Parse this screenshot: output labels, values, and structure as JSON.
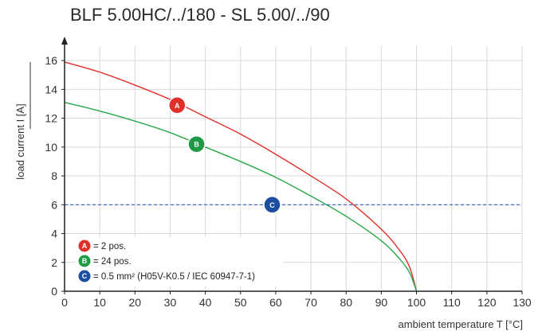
{
  "chart_data": {
    "type": "line",
    "title": "BLF 5.00HC/../180 - SL 5.00/../90",
    "xlabel": "ambient temperature T [°C]",
    "ylabel": "load current I [A]",
    "xlim": [
      0,
      130
    ],
    "ylim": [
      0,
      17
    ],
    "x_ticks": [
      0,
      10,
      20,
      30,
      40,
      50,
      60,
      70,
      80,
      90,
      100,
      110,
      120,
      130
    ],
    "y_ticks": [
      0,
      2,
      4,
      6,
      8,
      10,
      12,
      14,
      16
    ],
    "grid": true,
    "series": [
      {
        "marker": "A",
        "color": "#e0302a",
        "x": [
          0,
          10,
          20,
          30,
          40,
          50,
          60,
          70,
          80,
          90,
          95,
          98,
          100
        ],
        "y": [
          15.9,
          15.2,
          14.3,
          13.3,
          12.1,
          10.9,
          9.5,
          8.0,
          6.4,
          4.3,
          2.9,
          1.7,
          0
        ]
      },
      {
        "marker": "B",
        "color": "#2aa84a",
        "x": [
          0,
          10,
          20,
          30,
          40,
          50,
          60,
          70,
          80,
          90,
          95,
          98,
          100
        ],
        "y": [
          13.1,
          12.5,
          11.8,
          11.0,
          10.0,
          9.0,
          7.9,
          6.6,
          5.2,
          3.5,
          2.3,
          1.3,
          0
        ]
      },
      {
        "marker": "C",
        "color": "#2f5fd0",
        "style": "dashed",
        "x": [
          0,
          130
        ],
        "y": [
          6,
          6
        ]
      }
    ],
    "markers": [
      {
        "label": "A",
        "x": 32,
        "y": 12.9,
        "color": "#e0302a"
      },
      {
        "label": "B",
        "x": 37.5,
        "y": 10.2,
        "color": "#1f9a45"
      },
      {
        "label": "C",
        "x": 59,
        "y": 6,
        "color": "#1c4fa0"
      }
    ],
    "legend": {
      "placement": "bottom-left",
      "entries": [
        {
          "label": "A",
          "color": "#e0302a",
          "text": "= 2 pos."
        },
        {
          "label": "B",
          "color": "#1f9a45",
          "text": "= 24 pos."
        },
        {
          "label": "C",
          "color": "#1c4fa0",
          "text": "= 0.5 mm² (H05V-K0.5 / IEC 60947-7-1)"
        }
      ]
    }
  }
}
